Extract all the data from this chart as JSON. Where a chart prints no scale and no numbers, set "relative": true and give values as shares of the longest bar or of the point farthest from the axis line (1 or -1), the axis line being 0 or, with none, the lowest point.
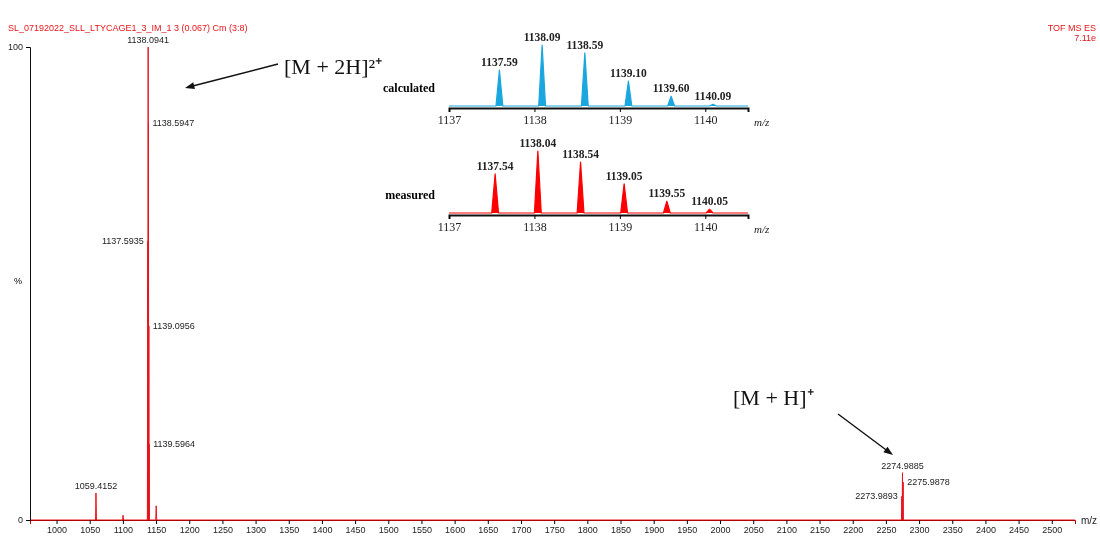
{
  "chart_data": [
    {
      "type": "line",
      "title": "SL_07192022_SLL_LTYCAGE1_3_IM_1 3 (0.067) Cm (3:8)",
      "xlabel": "m/z",
      "ylabel": "%",
      "x": [
        960,
        1058.8,
        1059.4152,
        1060.2,
        1099.5,
        1100.2,
        1101,
        1136.9,
        1137.5935,
        1137.85,
        1138.0941,
        1138.35,
        1138.5947,
        1138.85,
        1139.0956,
        1139.35,
        1139.5964,
        1139.85,
        1149.5,
        1150.2,
        1151,
        2273.4,
        2273.9893,
        2274.5,
        2274.9885,
        2275.4,
        2275.9878,
        2276.4,
        2535
      ],
      "series": [
        {
          "color": "#e8141c",
          "values": [
            0,
            0,
            5.7,
            0,
            0,
            1,
            0,
            0,
            59,
            0,
            100,
            0,
            84,
            0,
            41,
            0,
            16,
            0,
            0,
            3,
            0,
            0,
            5,
            0,
            10,
            0,
            8,
            0,
            0
          ]
        }
      ],
      "xlim": [
        960,
        2535
      ],
      "xticks": [
        1000,
        1050,
        1100,
        1150,
        1200,
        1250,
        1300,
        1350,
        1400,
        1450,
        1500,
        1550,
        1600,
        1650,
        1700,
        1750,
        1800,
        1850,
        1900,
        1950,
        2000,
        2050,
        2100,
        2150,
        2200,
        2250,
        2300,
        2350,
        2400,
        2450,
        2500
      ],
      "ylim": [
        0,
        100
      ],
      "yticks": [
        0,
        100
      ],
      "annotations": [
        "TOF MS ES",
        "7.11e",
        "[M + 2H]²⁺",
        "[M + H]⁺",
        {
          "text": "1059.4152",
          "x": 1059.4152,
          "y": 5.7
        },
        {
          "text": "1137.5935",
          "x": 1137.5935,
          "y": 59
        },
        {
          "text": "1138.0941",
          "x": 1138.0941,
          "y": 100
        },
        {
          "text": "1138.5947",
          "x": 1138.5947,
          "y": 84
        },
        {
          "text": "1139.0956",
          "x": 1139.0956,
          "y": 41
        },
        {
          "text": "1139.5964",
          "x": 1139.5964,
          "y": 16
        },
        {
          "text": "2273.9893",
          "x": 2273.9893,
          "y": 5
        },
        {
          "text": "2274.9885",
          "x": 2274.9885,
          "y": 10
        },
        {
          "text": "2275.9878",
          "x": 2275.9878,
          "y": 8
        }
      ]
    },
    {
      "type": "line",
      "relative": true,
      "xlabel": "m/z",
      "x": [
        1137,
        1137.55,
        1137.59,
        1137.63,
        1138.05,
        1138.09,
        1138.13,
        1138.55,
        1138.59,
        1138.63,
        1139.06,
        1139.1,
        1139.14,
        1139.56,
        1139.6,
        1139.64,
        1140.05,
        1140.09,
        1140.13,
        1140.5
      ],
      "series": [
        {
          "name": "calculated",
          "color": "#1aa7e0",
          "values": [
            0,
            0,
            0.59,
            0,
            0,
            1,
            0,
            0,
            0.87,
            0,
            0,
            0.41,
            0,
            0,
            0.16,
            0,
            0,
            0.03,
            0,
            0
          ]
        }
      ],
      "xlim": [
        1137,
        1140.5
      ],
      "xticks": [
        1137,
        1138,
        1139,
        1140
      ],
      "annotations": [
        {
          "text": "1137.59",
          "x": 1137.59,
          "y": 0.59
        },
        {
          "text": "1138.09",
          "x": 1138.09,
          "y": 1
        },
        {
          "text": "1138.59",
          "x": 1138.59,
          "y": 0.87
        },
        {
          "text": "1139.10",
          "x": 1139.1,
          "y": 0.41
        },
        {
          "text": "1139.60",
          "x": 1139.6,
          "y": 0.16
        },
        {
          "text": "1140.09",
          "x": 1140.09,
          "y": 0.03
        }
      ]
    },
    {
      "type": "line",
      "relative": true,
      "xlabel": "m/z",
      "x": [
        1137,
        1137.5,
        1137.54,
        1137.58,
        1138,
        1138.04,
        1138.08,
        1138.5,
        1138.54,
        1138.58,
        1139.01,
        1139.05,
        1139.09,
        1139.51,
        1139.55,
        1139.59,
        1140.01,
        1140.05,
        1140.09,
        1140.5
      ],
      "series": [
        {
          "name": "measured",
          "color": "#ff0000",
          "values": [
            0,
            0,
            0.63,
            0,
            0,
            1,
            0,
            0,
            0.82,
            0,
            0,
            0.47,
            0,
            0,
            0.19,
            0,
            0,
            0.06,
            0,
            0
          ]
        }
      ],
      "xlim": [
        1137,
        1140.5
      ],
      "xticks": [
        1137,
        1138,
        1139,
        1140
      ],
      "annotations": [
        {
          "text": "1137.54",
          "x": 1137.54,
          "y": 0.63
        },
        {
          "text": "1138.04",
          "x": 1138.04,
          "y": 1
        },
        {
          "text": "1138.54",
          "x": 1138.54,
          "y": 0.82
        },
        {
          "text": "1139.05",
          "x": 1139.05,
          "y": 0.47
        },
        {
          "text": "1139.55",
          "x": 1139.55,
          "y": 0.19
        },
        {
          "text": "1140.05",
          "x": 1140.05,
          "y": 0.06
        }
      ]
    }
  ]
}
